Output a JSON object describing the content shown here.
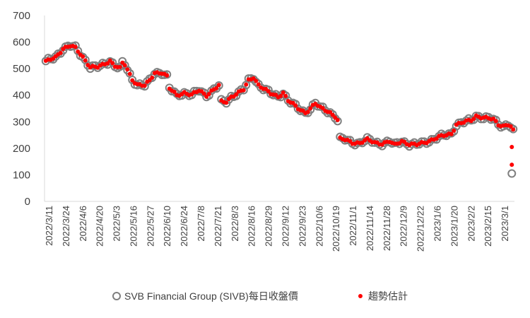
{
  "chart_data": {
    "type": "scatter",
    "title": "",
    "xlabel": "",
    "ylabel": "",
    "ylim": [
      0,
      700
    ],
    "yticks": [
      "0",
      "100",
      "200",
      "300",
      "400",
      "500",
      "600",
      "700"
    ],
    "xticks": [
      "2022/3/11",
      "2022/3/24",
      "2022/4/6",
      "2022/4/20",
      "2022/5/3",
      "2022/5/16",
      "2022/5/27",
      "2022/6/10",
      "2022/6/24",
      "2022/7/8",
      "2022/7/21",
      "2022/8/3",
      "2022/8/16",
      "2022/8/29",
      "2022/9/12",
      "2022/9/23",
      "2022/10/6",
      "2022/10/19",
      "2022/11/1",
      "2022/11/14",
      "2022/11/28",
      "2022/12/9",
      "2022/12/22",
      "2023/1/6",
      "2023/1/20",
      "2023/2/2",
      "2023/2/15",
      "2023/3/1"
    ],
    "grid": false,
    "legend": "bottom",
    "keypoints": [
      [
        0,
        525
      ],
      [
        4,
        545
      ],
      [
        7,
        575
      ],
      [
        10,
        585
      ],
      [
        12,
        578
      ],
      [
        15,
        545
      ],
      [
        18,
        505
      ],
      [
        21,
        505
      ],
      [
        24,
        520
      ],
      [
        26,
        530
      ],
      [
        28,
        510
      ],
      [
        30,
        500
      ],
      [
        31,
        520
      ],
      [
        32,
        515
      ],
      [
        35,
        460
      ],
      [
        37,
        440
      ],
      [
        40,
        435
      ],
      [
        42,
        455
      ],
      [
        44,
        485
      ],
      [
        47,
        485
      ],
      [
        49,
        470
      ],
      [
        50,
        425
      ],
      [
        53,
        400
      ],
      [
        56,
        410
      ],
      [
        59,
        400
      ],
      [
        62,
        418
      ],
      [
        65,
        400
      ],
      [
        67,
        415
      ],
      [
        70,
        435
      ],
      [
        71,
        375
      ],
      [
        73,
        375
      ],
      [
        75,
        395
      ],
      [
        78,
        410
      ],
      [
        80,
        420
      ],
      [
        82,
        455
      ],
      [
        84,
        468
      ],
      [
        86,
        440
      ],
      [
        88,
        425
      ],
      [
        91,
        405
      ],
      [
        94,
        395
      ],
      [
        96,
        410
      ],
      [
        98,
        380
      ],
      [
        100,
        365
      ],
      [
        102,
        350
      ],
      [
        105,
        335
      ],
      [
        107,
        350
      ],
      [
        109,
        368
      ],
      [
        111,
        352
      ],
      [
        113,
        345
      ],
      [
        115,
        335
      ],
      [
        117,
        320
      ],
      [
        118,
        305
      ],
      [
        119,
        235
      ],
      [
        121,
        232
      ],
      [
        124,
        222
      ],
      [
        127,
        220
      ],
      [
        130,
        232
      ],
      [
        133,
        222
      ],
      [
        136,
        218
      ],
      [
        139,
        225
      ],
      [
        141,
        212
      ],
      [
        144,
        228
      ],
      [
        147,
        215
      ],
      [
        150,
        213
      ],
      [
        153,
        222
      ],
      [
        156,
        232
      ],
      [
        159,
        242
      ],
      [
        162,
        250
      ],
      [
        164,
        255
      ],
      [
        166,
        290
      ],
      [
        169,
        298
      ],
      [
        172,
        305
      ],
      [
        174,
        322
      ],
      [
        176,
        318
      ],
      [
        179,
        312
      ],
      [
        181,
        308
      ],
      [
        183,
        290
      ],
      [
        185,
        285
      ],
      [
        187,
        290
      ],
      [
        188,
        282
      ],
      [
        189,
        265
      ]
    ],
    "outlier": [
      189,
      105
    ],
    "trend_tail": [
      [
        189,
        205
      ],
      [
        189,
        138
      ]
    ],
    "series": [
      {
        "name": "SVB Financial Group (SIVB)每日收盤價",
        "marker": "hollow-circle",
        "color": "#7f7f7f"
      },
      {
        "name": "趨勢估計",
        "marker": "dot",
        "color": "#ff0000"
      }
    ]
  }
}
